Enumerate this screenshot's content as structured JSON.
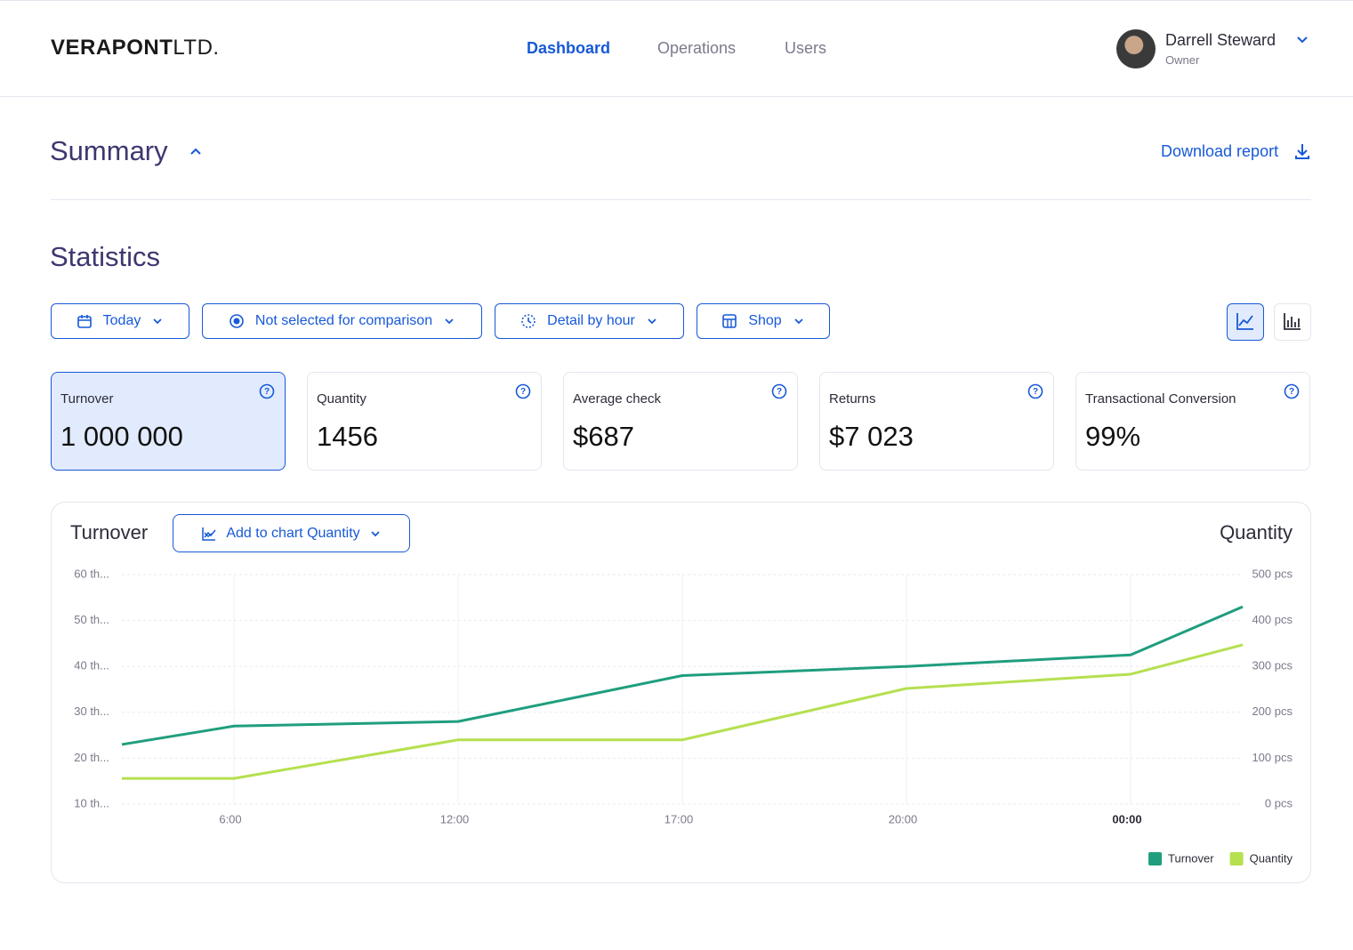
{
  "header": {
    "logo": {
      "bold": "VERAPONT",
      "light": "LTD."
    },
    "nav": [
      "Dashboard",
      "Operations",
      "Users"
    ],
    "user": {
      "name": "Darrell Steward",
      "role": "Owner"
    }
  },
  "summary": {
    "title": "Summary",
    "download": "Download report"
  },
  "statistics": {
    "title": "Statistics",
    "filters": [
      "Today",
      "Not selected for comparison",
      "Detail by hour",
      "Shop"
    ],
    "cards": [
      {
        "label": "Turnover",
        "value": "1 000 000"
      },
      {
        "label": "Quantity",
        "value": "1456"
      },
      {
        "label": "Average check",
        "value": "$687"
      },
      {
        "label": "Returns",
        "value": "$7 023"
      },
      {
        "label": "Transactional Conversion",
        "value": "99%"
      }
    ]
  },
  "chart_data": {
    "type": "line",
    "title": "Turnover",
    "add_button": "Add to chart Quantity",
    "y2_label": "Quantity",
    "categories": [
      null,
      "6:00",
      "12:00",
      "17:00",
      "20:00",
      "00:00",
      null
    ],
    "series": [
      {
        "name": "Turnover",
        "color": "#1f9e7e",
        "values": [
          23000,
          27000,
          28000,
          38000,
          40000,
          42500,
          53000
        ]
      },
      {
        "name": "Quantity",
        "color": "#b5e04f",
        "axis": "y2",
        "values": [
          56,
          56,
          140,
          140,
          252,
          283,
          347
        ]
      }
    ],
    "ylim": [
      10000,
      60000
    ],
    "yticks": [
      {
        "value": 10000,
        "label": "10 th..."
      },
      {
        "value": 20000,
        "label": "20 th..."
      },
      {
        "value": 30000,
        "label": "30 th..."
      },
      {
        "value": 40000,
        "label": "40 th..."
      },
      {
        "value": 50000,
        "label": "50 th..."
      },
      {
        "value": 60000,
        "label": "60 th..."
      }
    ],
    "y2lim": [
      0,
      500
    ],
    "y2ticks": [
      {
        "value": 0,
        "label": "0 pcs"
      },
      {
        "value": 100,
        "label": "100 pcs"
      },
      {
        "value": 200,
        "label": "200 pcs"
      },
      {
        "value": 300,
        "label": "300 pcs"
      },
      {
        "value": 400,
        "label": "400 pcs"
      },
      {
        "value": 500,
        "label": "500 pcs"
      }
    ],
    "grid": true,
    "legend": "bottom-right"
  }
}
